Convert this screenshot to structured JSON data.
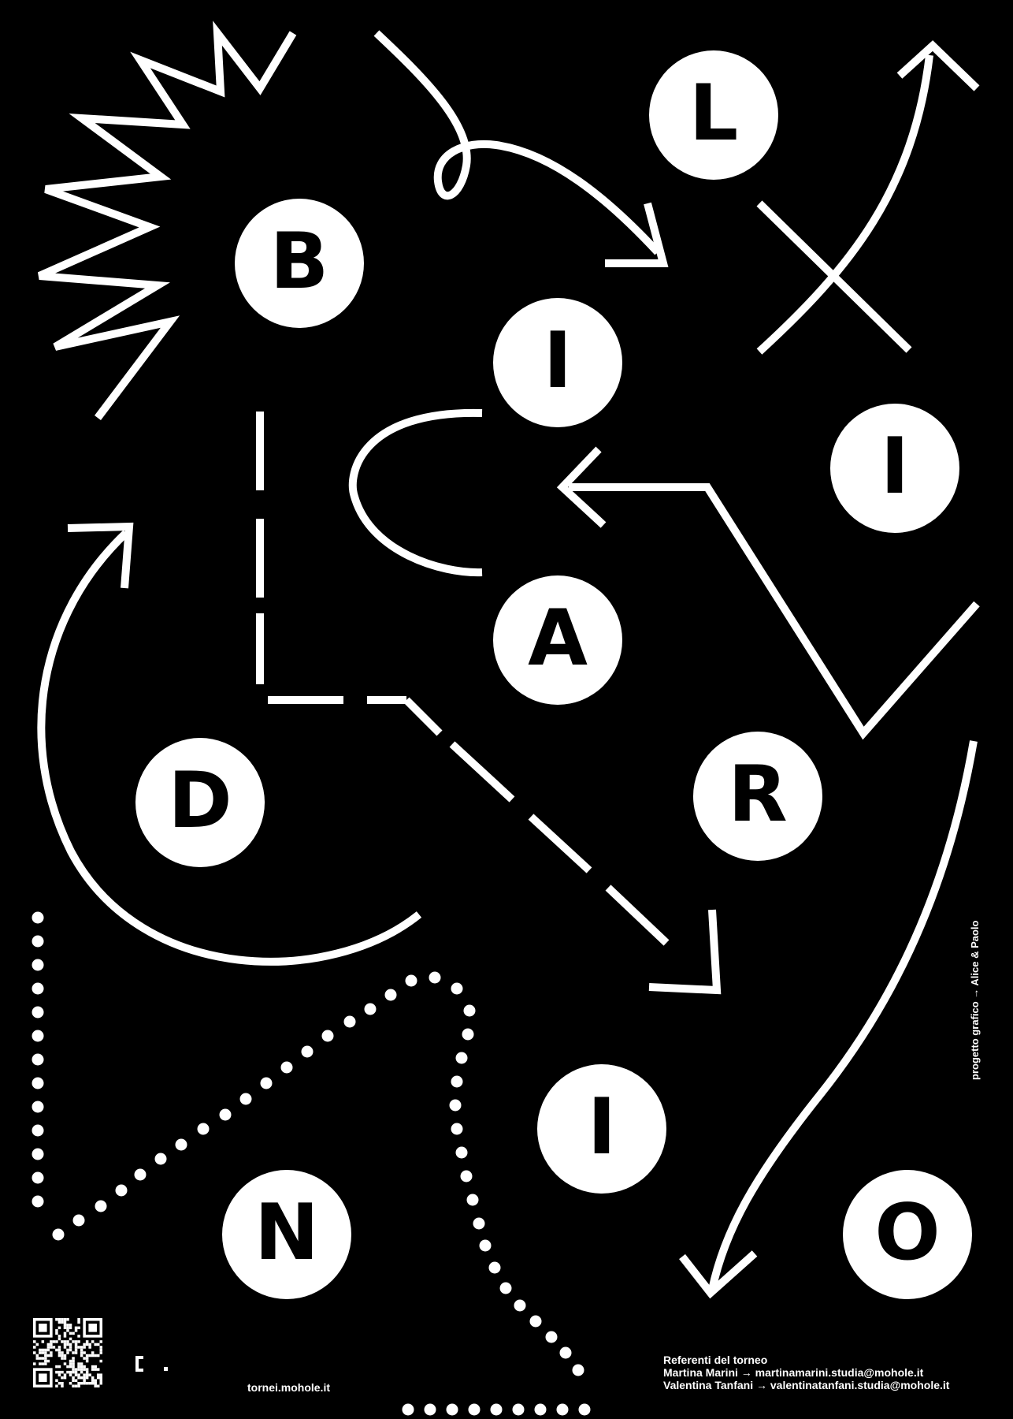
{
  "title_letters": [
    {
      "id": "B",
      "char": "B"
    },
    {
      "id": "I1",
      "char": "I"
    },
    {
      "id": "L",
      "char": "L"
    },
    {
      "id": "I2",
      "char": "I"
    },
    {
      "id": "A",
      "char": "A"
    },
    {
      "id": "R",
      "char": "R"
    },
    {
      "id": "D",
      "char": "D"
    },
    {
      "id": "I3",
      "char": "I"
    },
    {
      "id": "N",
      "char": "N"
    },
    {
      "id": "O",
      "char": "O"
    }
  ],
  "footer": {
    "contacts_heading": "Referenti del torneo",
    "contact_1": "Martina Marini → martinamarini.studia@mohole.it",
    "contact_2": "Valentina Tanfani → valentinatanfani.studia@mohole.it",
    "website": "tornei.mohole.it",
    "credit": "progetto grafico → Alice & Paolo"
  },
  "colors": {
    "background": "#000000",
    "foreground": "#ffffff"
  },
  "icons": {
    "qr": "qr-code-icon",
    "logo": "mohole-logo-icon"
  }
}
